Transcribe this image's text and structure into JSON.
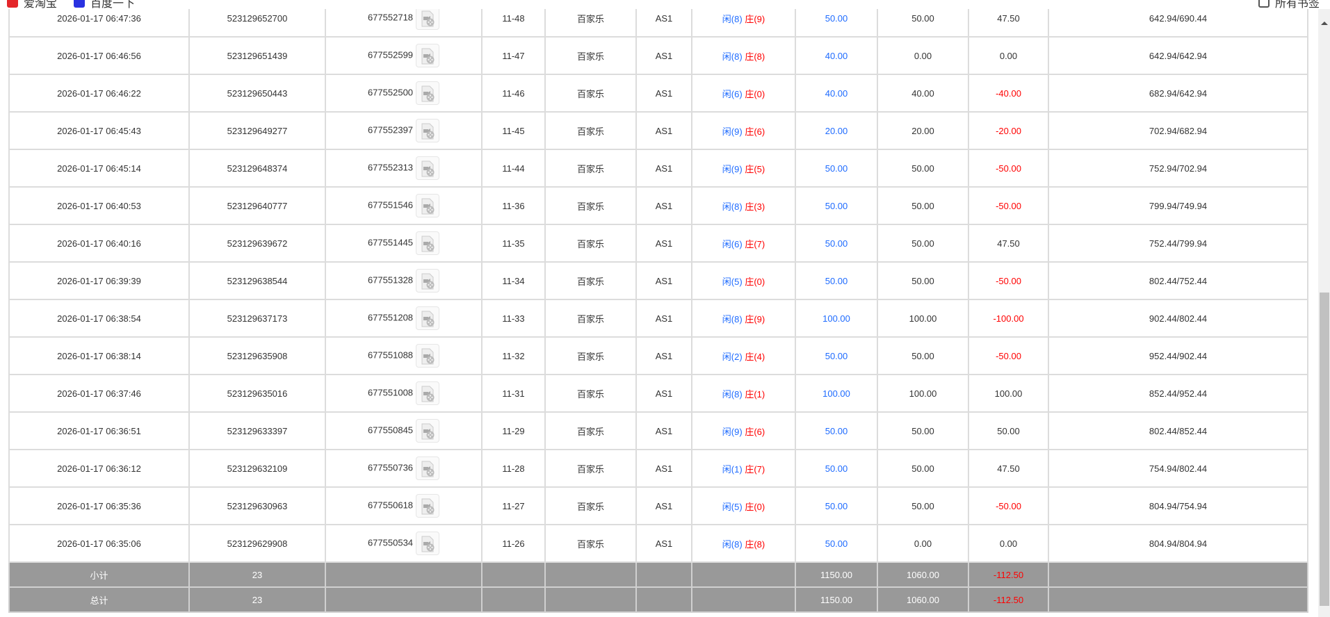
{
  "bookmarks": [
    {
      "label": "爱淘宝",
      "icon": "taobao-icon",
      "color": "#e4262a"
    },
    {
      "label": "百度一下",
      "icon": "baidu-icon",
      "color": "#2932e1"
    }
  ],
  "bookmarks_right": {
    "label": "所有书签",
    "icon": "folder-icon"
  },
  "colors": {
    "blue": "#1e6bff",
    "red": "#ff0000",
    "summary_bg": "#999999"
  },
  "rows": [
    {
      "time": "2026-01-17 06:47:36",
      "bet_id": "523129652700",
      "round_id": "677552718",
      "shoe": "11-48",
      "game": "百家乐",
      "table": "AS1",
      "p": "闲(8)",
      "b": "庄(9)",
      "bet": "50.00",
      "valid": "50.00",
      "win": "47.50",
      "win_neg": false,
      "balance": "642.94/690.44"
    },
    {
      "time": "2026-01-17 06:46:56",
      "bet_id": "523129651439",
      "round_id": "677552599",
      "shoe": "11-47",
      "game": "百家乐",
      "table": "AS1",
      "p": "闲(8)",
      "b": "庄(8)",
      "bet": "40.00",
      "valid": "0.00",
      "win": "0.00",
      "win_neg": false,
      "balance": "642.94/642.94"
    },
    {
      "time": "2026-01-17 06:46:22",
      "bet_id": "523129650443",
      "round_id": "677552500",
      "shoe": "11-46",
      "game": "百家乐",
      "table": "AS1",
      "p": "闲(6)",
      "b": "庄(0)",
      "bet": "40.00",
      "valid": "40.00",
      "win": "-40.00",
      "win_neg": true,
      "balance": "682.94/642.94"
    },
    {
      "time": "2026-01-17 06:45:43",
      "bet_id": "523129649277",
      "round_id": "677552397",
      "shoe": "11-45",
      "game": "百家乐",
      "table": "AS1",
      "p": "闲(9)",
      "b": "庄(6)",
      "bet": "20.00",
      "valid": "20.00",
      "win": "-20.00",
      "win_neg": true,
      "balance": "702.94/682.94"
    },
    {
      "time": "2026-01-17 06:45:14",
      "bet_id": "523129648374",
      "round_id": "677552313",
      "shoe": "11-44",
      "game": "百家乐",
      "table": "AS1",
      "p": "闲(9)",
      "b": "庄(5)",
      "bet": "50.00",
      "valid": "50.00",
      "win": "-50.00",
      "win_neg": true,
      "balance": "752.94/702.94"
    },
    {
      "time": "2026-01-17 06:40:53",
      "bet_id": "523129640777",
      "round_id": "677551546",
      "shoe": "11-36",
      "game": "百家乐",
      "table": "AS1",
      "p": "闲(8)",
      "b": "庄(3)",
      "bet": "50.00",
      "valid": "50.00",
      "win": "-50.00",
      "win_neg": true,
      "balance": "799.94/749.94"
    },
    {
      "time": "2026-01-17 06:40:16",
      "bet_id": "523129639672",
      "round_id": "677551445",
      "shoe": "11-35",
      "game": "百家乐",
      "table": "AS1",
      "p": "闲(6)",
      "b": "庄(7)",
      "bet": "50.00",
      "valid": "50.00",
      "win": "47.50",
      "win_neg": false,
      "balance": "752.44/799.94"
    },
    {
      "time": "2026-01-17 06:39:39",
      "bet_id": "523129638544",
      "round_id": "677551328",
      "shoe": "11-34",
      "game": "百家乐",
      "table": "AS1",
      "p": "闲(5)",
      "b": "庄(0)",
      "bet": "50.00",
      "valid": "50.00",
      "win": "-50.00",
      "win_neg": true,
      "balance": "802.44/752.44"
    },
    {
      "time": "2026-01-17 06:38:54",
      "bet_id": "523129637173",
      "round_id": "677551208",
      "shoe": "11-33",
      "game": "百家乐",
      "table": "AS1",
      "p": "闲(8)",
      "b": "庄(9)",
      "bet": "100.00",
      "valid": "100.00",
      "win": "-100.00",
      "win_neg": true,
      "balance": "902.44/802.44"
    },
    {
      "time": "2026-01-17 06:38:14",
      "bet_id": "523129635908",
      "round_id": "677551088",
      "shoe": "11-32",
      "game": "百家乐",
      "table": "AS1",
      "p": "闲(2)",
      "b": "庄(4)",
      "bet": "50.00",
      "valid": "50.00",
      "win": "-50.00",
      "win_neg": true,
      "balance": "952.44/902.44"
    },
    {
      "time": "2026-01-17 06:37:46",
      "bet_id": "523129635016",
      "round_id": "677551008",
      "shoe": "11-31",
      "game": "百家乐",
      "table": "AS1",
      "p": "闲(8)",
      "b": "庄(1)",
      "bet": "100.00",
      "valid": "100.00",
      "win": "100.00",
      "win_neg": false,
      "balance": "852.44/952.44"
    },
    {
      "time": "2026-01-17 06:36:51",
      "bet_id": "523129633397",
      "round_id": "677550845",
      "shoe": "11-29",
      "game": "百家乐",
      "table": "AS1",
      "p": "闲(9)",
      "b": "庄(6)",
      "bet": "50.00",
      "valid": "50.00",
      "win": "50.00",
      "win_neg": false,
      "balance": "802.44/852.44"
    },
    {
      "time": "2026-01-17 06:36:12",
      "bet_id": "523129632109",
      "round_id": "677550736",
      "shoe": "11-28",
      "game": "百家乐",
      "table": "AS1",
      "p": "闲(1)",
      "b": "庄(7)",
      "bet": "50.00",
      "valid": "50.00",
      "win": "47.50",
      "win_neg": false,
      "balance": "754.94/802.44"
    },
    {
      "time": "2026-01-17 06:35:36",
      "bet_id": "523129630963",
      "round_id": "677550618",
      "shoe": "11-27",
      "game": "百家乐",
      "table": "AS1",
      "p": "闲(5)",
      "b": "庄(0)",
      "bet": "50.00",
      "valid": "50.00",
      "win": "-50.00",
      "win_neg": true,
      "balance": "804.94/754.94"
    },
    {
      "time": "2026-01-17 06:35:06",
      "bet_id": "523129629908",
      "round_id": "677550534",
      "shoe": "11-26",
      "game": "百家乐",
      "table": "AS1",
      "p": "闲(8)",
      "b": "庄(8)",
      "bet": "50.00",
      "valid": "0.00",
      "win": "0.00",
      "win_neg": false,
      "balance": "804.94/804.94"
    }
  ],
  "summary": [
    {
      "label": "小计",
      "count": "23",
      "bet": "1150.00",
      "valid": "1060.00",
      "win": "-112.50"
    },
    {
      "label": "总计",
      "count": "23",
      "bet": "1150.00",
      "valid": "1060.00",
      "win": "-112.50"
    }
  ]
}
